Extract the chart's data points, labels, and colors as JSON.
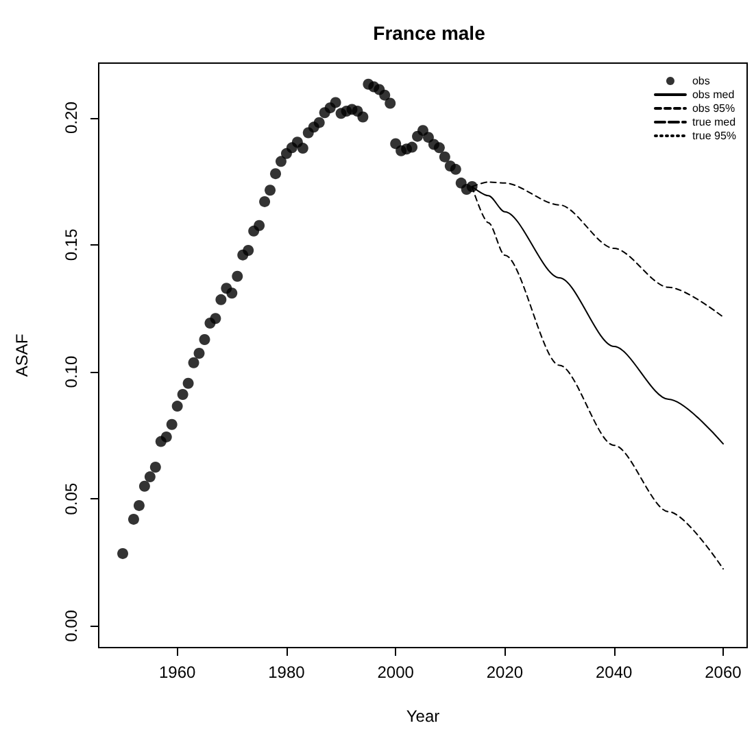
{
  "chart_data": {
    "type": "scatter",
    "title": "France male",
    "xlabel": "Year",
    "ylabel": "ASAF",
    "xlim": [
      1945.6,
      2064.4
    ],
    "ylim": [
      -0.0085,
      0.2215
    ],
    "xticks": [
      1960,
      1980,
      2000,
      2020,
      2040,
      2060
    ],
    "yticks": [
      {
        "value": 0,
        "label": "0.00"
      },
      {
        "value": 0.05,
        "label": "0.05"
      },
      {
        "value": 0.1,
        "label": "0.10"
      },
      {
        "value": 0.15,
        "label": "0.15"
      },
      {
        "value": 0.2,
        "label": "0.20"
      }
    ],
    "grid": false,
    "legend": "top right",
    "series": [
      {
        "name": "obs",
        "marker": "circle",
        "color": "#000000",
        "x": [
          1950,
          1952,
          1953,
          1954,
          1955,
          1956,
          1957,
          1958,
          1959,
          1960,
          1961,
          1962,
          1963,
          1964,
          1965,
          1966,
          1967,
          1968,
          1969,
          1970,
          1971,
          1972,
          1973,
          1974,
          1975,
          1976,
          1977,
          1978,
          1979,
          1980,
          1981,
          1982,
          1983,
          1984,
          1985,
          1986,
          1987,
          1988,
          1989,
          1990,
          1991,
          1992,
          1993,
          1994,
          1995,
          1996,
          1997,
          1998,
          1999,
          2000,
          2001,
          2002,
          2003,
          2004,
          2005,
          2006,
          2007,
          2008,
          2009,
          2010,
          2011,
          2012,
          2013,
          2014
        ],
        "values": [
          0.0285,
          0.042,
          0.0474,
          0.055,
          0.0587,
          0.0625,
          0.0726,
          0.0744,
          0.0793,
          0.0865,
          0.0911,
          0.0955,
          0.1036,
          0.1073,
          0.1127,
          0.1192,
          0.121,
          0.1284,
          0.1329,
          0.131,
          0.1376,
          0.146,
          0.1478,
          0.1554,
          0.1576,
          0.167,
          0.1715,
          0.178,
          0.1828,
          0.1859,
          0.1882,
          0.1904,
          0.188,
          0.1941,
          0.1963,
          0.1981,
          0.202,
          0.2039,
          0.206,
          0.2017,
          0.2026,
          0.2033,
          0.2026,
          0.2003,
          0.2132,
          0.2122,
          0.2111,
          0.2089,
          0.2057,
          0.1898,
          0.187,
          0.1877,
          0.1884,
          0.1927,
          0.195,
          0.1923,
          0.1895,
          0.1882,
          0.1846,
          0.181,
          0.1797,
          0.1743,
          0.1718,
          0.1729
        ]
      },
      {
        "name": "obs med",
        "type": "line",
        "line_style": "solid",
        "marker": "none",
        "color": "#000000",
        "x": [
          2014,
          2017,
          2020,
          2030,
          2040,
          2050,
          2060
        ],
        "values": [
          0.1729,
          0.1693,
          0.163,
          0.137,
          0.11,
          0.0892,
          0.0717
        ]
      },
      {
        "name": "obs 95%",
        "type": "line",
        "line_style": "dashed",
        "marker": "none",
        "color": "#000000",
        "x": [
          2014,
          2017,
          2020,
          2030,
          2040,
          2050,
          2060
        ],
        "values": [
          0.1729,
          0.1747,
          0.1743,
          0.1657,
          0.1486,
          0.1333,
          0.1216
        ]
      },
      {
        "type": "line",
        "line_style": "dashed",
        "marker": "none",
        "color": "#000000",
        "x": [
          2014,
          2017,
          2020,
          2030,
          2040,
          2050,
          2060
        ],
        "values": [
          0.1729,
          0.1587,
          0.1459,
          0.1026,
          0.0711,
          0.045,
          0.0225
        ]
      },
      {
        "name": "true med",
        "type": "line",
        "line_style": "longdash",
        "marker": "none",
        "color": "#000000"
      },
      {
        "name": "true 95%",
        "type": "line",
        "line_style": "dotted",
        "marker": "none",
        "color": "#000000"
      }
    ]
  }
}
